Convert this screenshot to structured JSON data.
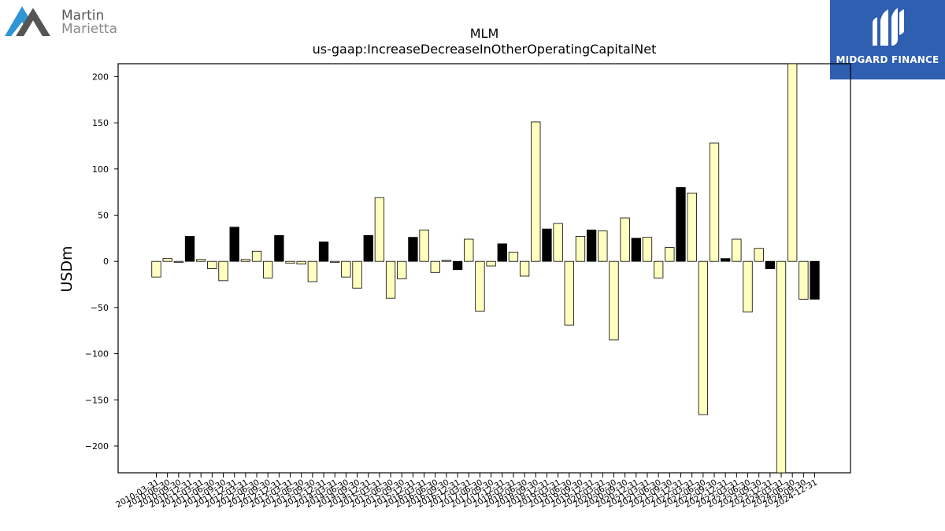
{
  "brand": {
    "company_line1": "Martin",
    "company_line2": "Marietta",
    "badge_text": "MIDGARD FINANCE",
    "accent": "#2f5fb0"
  },
  "chart_data": {
    "type": "bar",
    "title": "MLM",
    "subtitle": "us-gaap:IncreaseDecreaseInOtherOperatingCapitalNet",
    "ylabel": "USDm",
    "xlabel": "",
    "ylim": [
      -229,
      214
    ],
    "yticks": [
      -200,
      -150,
      -100,
      -50,
      0,
      50,
      100,
      150,
      200
    ],
    "ytick_labels": [
      "−200",
      "−150",
      "−100",
      "−50",
      "0",
      "50",
      "100",
      "150",
      "200"
    ],
    "grid": false,
    "colors": {
      "q1_q2_q3": "#ffffc0",
      "q4": "#000000",
      "edge": "#000000"
    },
    "categories": [
      "2010-03-31",
      "2010-06-30",
      "2010-09-30",
      "2010-12-31",
      "2011-03-31",
      "2011-06-30",
      "2011-09-30",
      "2011-12-31",
      "2012-03-31",
      "2012-06-30",
      "2012-09-30",
      "2012-12-31",
      "2013-03-31",
      "2013-06-30",
      "2013-09-30",
      "2013-12-31",
      "2014-03-31",
      "2014-06-30",
      "2014-09-30",
      "2014-12-31",
      "2015-03-31",
      "2015-06-30",
      "2015-09-30",
      "2015-12-31",
      "2016-03-31",
      "2016-06-30",
      "2016-09-30",
      "2016-12-31",
      "2017-03-31",
      "2017-06-30",
      "2017-09-30",
      "2017-12-31",
      "2018-03-31",
      "2018-06-30",
      "2018-09-30",
      "2018-12-31",
      "2019-03-31",
      "2019-06-30",
      "2019-09-30",
      "2019-12-31",
      "2020-03-31",
      "2020-06-30",
      "2020-09-30",
      "2020-12-31",
      "2021-03-31",
      "2021-06-30",
      "2021-09-30",
      "2021-12-31",
      "2022-03-31",
      "2022-06-30",
      "2022-09-30",
      "2022-12-31",
      "2023-03-31",
      "2023-06-30",
      "2023-09-30",
      "2023-12-31",
      "2024-03-31",
      "2024-06-30",
      "2024-09-30",
      "2024-12-31"
    ],
    "values": [
      -17,
      3,
      -1,
      27,
      2,
      -8,
      -21,
      37,
      2,
      11,
      -18,
      28,
      -2,
      -3,
      -22,
      21,
      -1,
      -17,
      -29,
      28,
      69,
      -40,
      -19,
      26,
      34,
      -12,
      1,
      -9,
      24,
      -54,
      -5,
      19,
      10,
      -16,
      151,
      35,
      41,
      -69,
      27,
      34,
      33,
      -85,
      47,
      25,
      26,
      -18,
      15,
      80,
      74,
      -166,
      128,
      3,
      24,
      -55,
      14,
      -8,
      -229,
      214,
      -41,
      -41
    ],
    "quarter_end_bars_black": true
  }
}
